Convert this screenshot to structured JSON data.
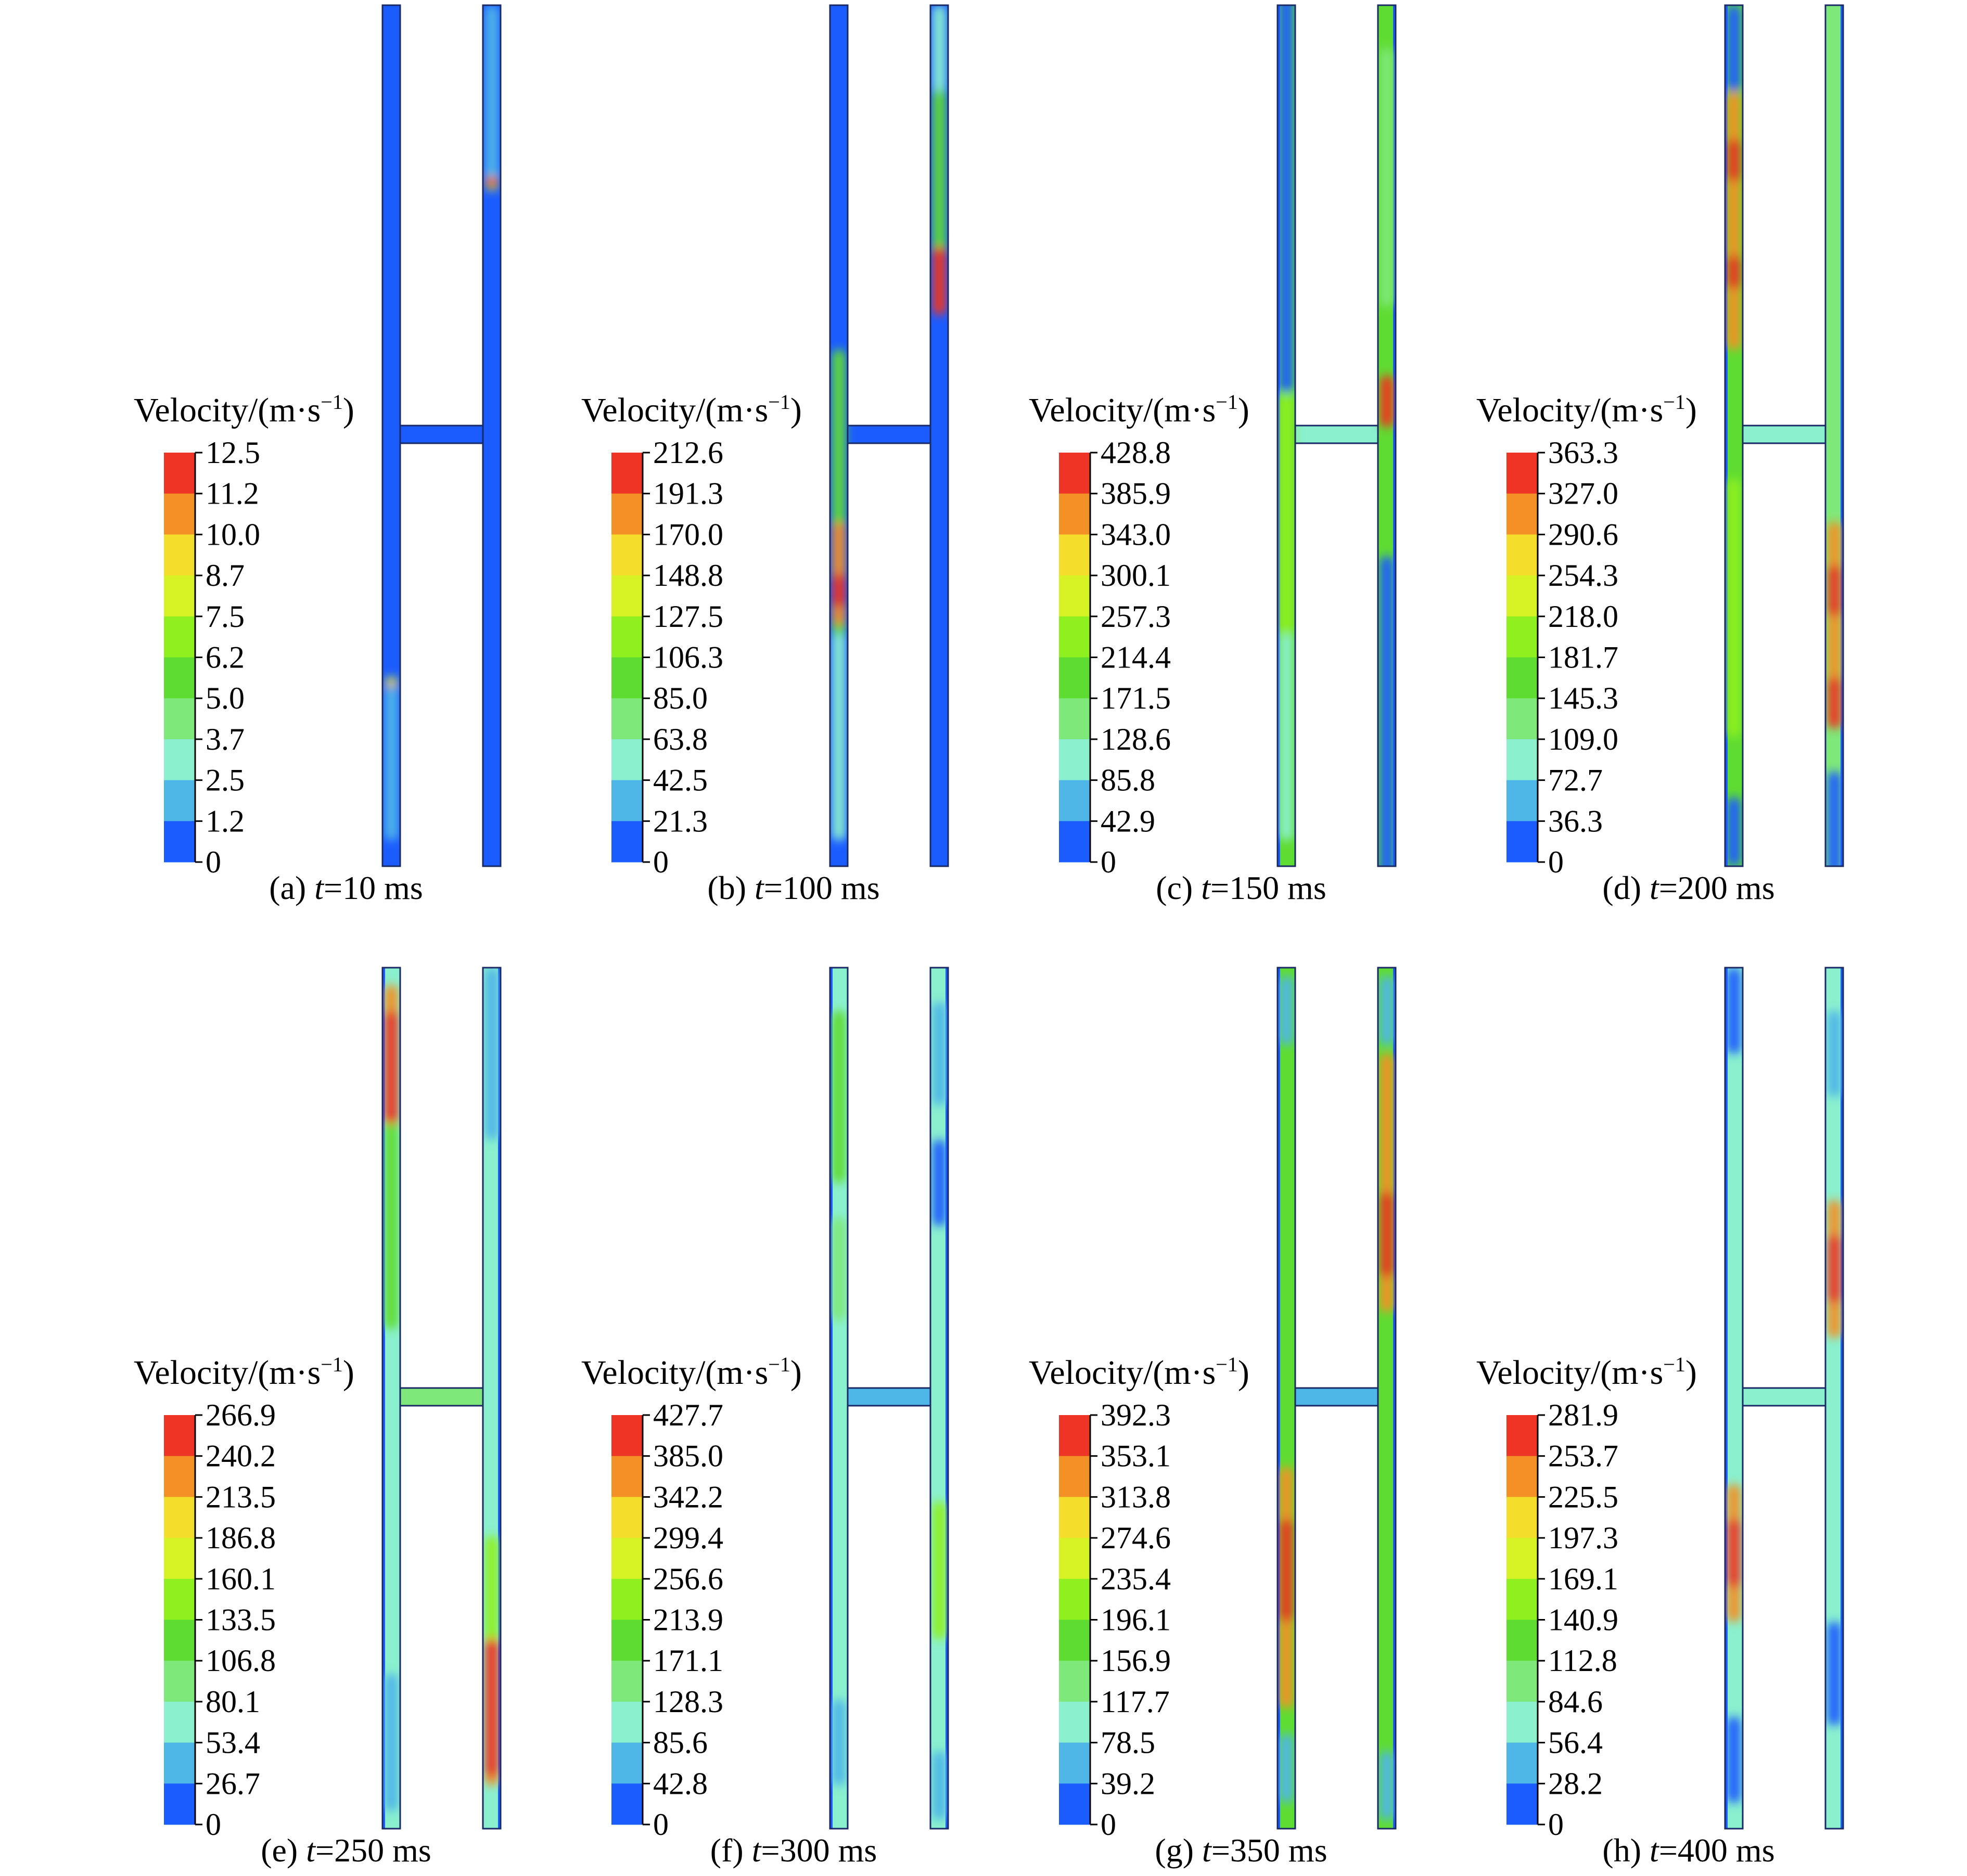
{
  "legend_title": "Velocity/(m·s",
  "legend_title_exponent": "−1",
  "legend_title_close": ")",
  "colorbar_colors": [
    "#1b5cff",
    "#4fb6e8",
    "#8af0ce",
    "#7fe87a",
    "#5fdc32",
    "#8ff020",
    "#d7f225",
    "#f4dd2b",
    "#f39127",
    "#ee3424"
  ],
  "outline_color": "#1a2a66",
  "panels": [
    {
      "label": "(a)",
      "var": "t",
      "eq": "=10 ms",
      "ticks": [
        "12.5",
        "11.2",
        "10.0",
        "8.7",
        "7.5",
        "6.2",
        "5.0",
        "3.7",
        "2.5",
        "1.2",
        "0"
      ]
    },
    {
      "label": "(b)",
      "var": "t",
      "eq": "=100 ms",
      "ticks": [
        "212.6",
        "191.3",
        "170.0",
        "148.8",
        "127.5",
        "106.3",
        "85.0",
        "63.8",
        "42.5",
        "21.3",
        "0"
      ]
    },
    {
      "label": "(c)",
      "var": "t",
      "eq": "=150 ms",
      "ticks": [
        "428.8",
        "385.9",
        "343.0",
        "300.1",
        "257.3",
        "214.4",
        "171.5",
        "128.6",
        "85.8",
        "42.9",
        "0"
      ]
    },
    {
      "label": "(d)",
      "var": "t",
      "eq": "=200 ms",
      "ticks": [
        "363.3",
        "327.0",
        "290.6",
        "254.3",
        "218.0",
        "181.7",
        "145.3",
        "109.0",
        "72.7",
        "36.3",
        "0"
      ]
    },
    {
      "label": "(e)",
      "var": "t",
      "eq": "=250 ms",
      "ticks": [
        "266.9",
        "240.2",
        "213.5",
        "186.8",
        "160.1",
        "133.5",
        "106.8",
        "80.1",
        "53.4",
        "26.7",
        "0"
      ]
    },
    {
      "label": "(f)",
      "var": "t",
      "eq": "=300 ms",
      "ticks": [
        "427.7",
        "385.0",
        "342.2",
        "299.4",
        "256.6",
        "213.9",
        "171.1",
        "128.3",
        "85.6",
        "42.8",
        "0"
      ]
    },
    {
      "label": "(g)",
      "var": "t",
      "eq": "=350 ms",
      "ticks": [
        "392.3",
        "353.1",
        "313.8",
        "274.6",
        "235.4",
        "196.1",
        "156.9",
        "117.7",
        "78.5",
        "39.2",
        "0"
      ]
    },
    {
      "label": "(h)",
      "var": "t",
      "eq": "=400 ms",
      "ticks": [
        "281.9",
        "253.7",
        "225.5",
        "197.3",
        "169.1",
        "140.9",
        "112.8",
        "84.6",
        "56.4",
        "28.2",
        "0"
      ]
    }
  ]
}
